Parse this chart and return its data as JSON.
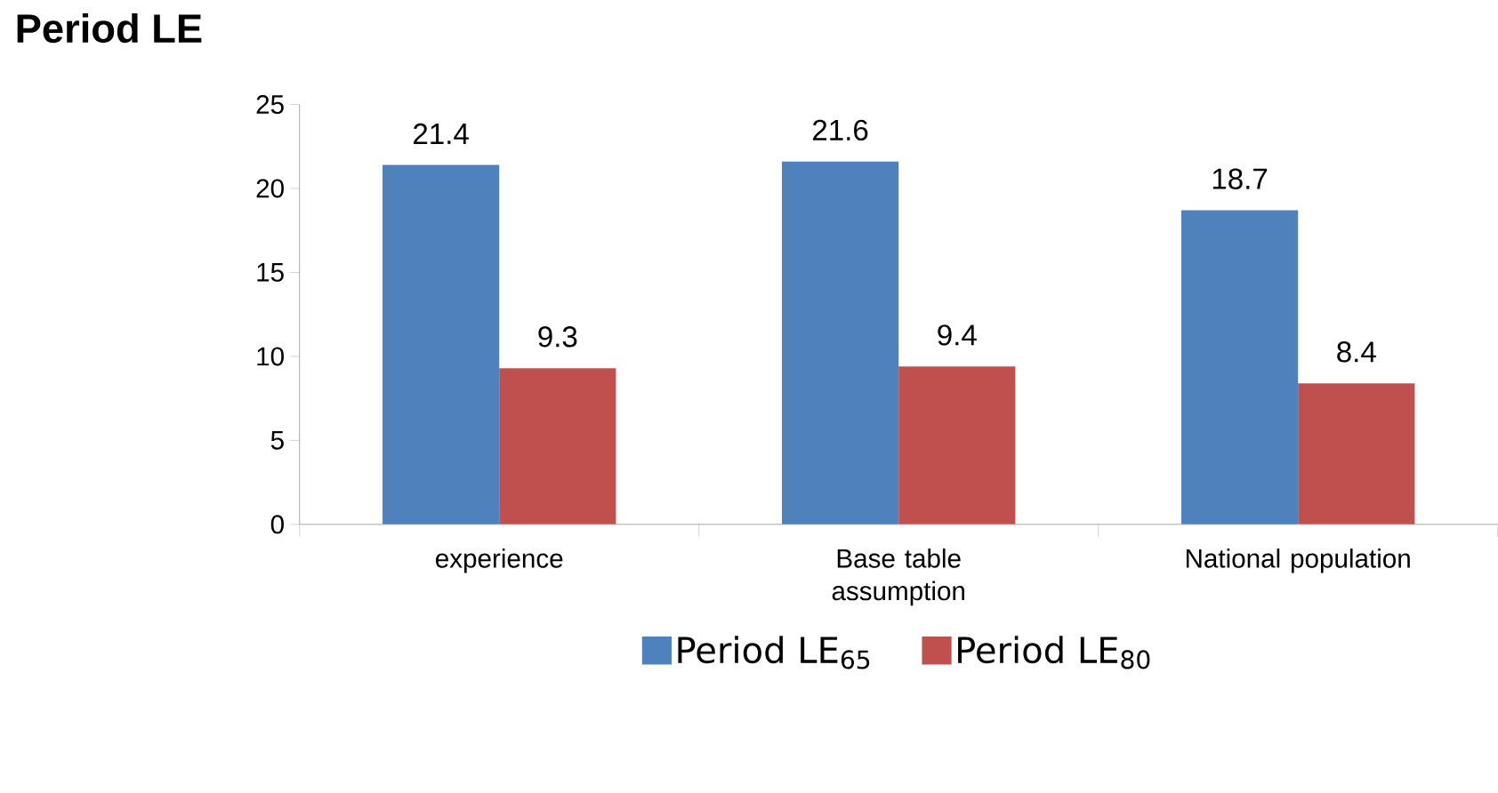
{
  "chart_data": {
    "type": "bar",
    "title": "Period LE",
    "categories": [
      "experience",
      "Base table assumption",
      "National population"
    ],
    "series": [
      {
        "name": "Period LE$_{65}$",
        "color": "#4f81bd",
        "values": [
          21.4,
          21.6,
          18.7
        ]
      },
      {
        "name": "Period LE$_{80}$",
        "color": "#c0504d",
        "values": [
          9.3,
          9.4,
          8.4
        ]
      }
    ],
    "ylim": [
      0,
      25
    ],
    "yticks": [
      0,
      5,
      10,
      15,
      20,
      25
    ],
    "grid": false,
    "legend": "bottom",
    "data_labels": true
  }
}
